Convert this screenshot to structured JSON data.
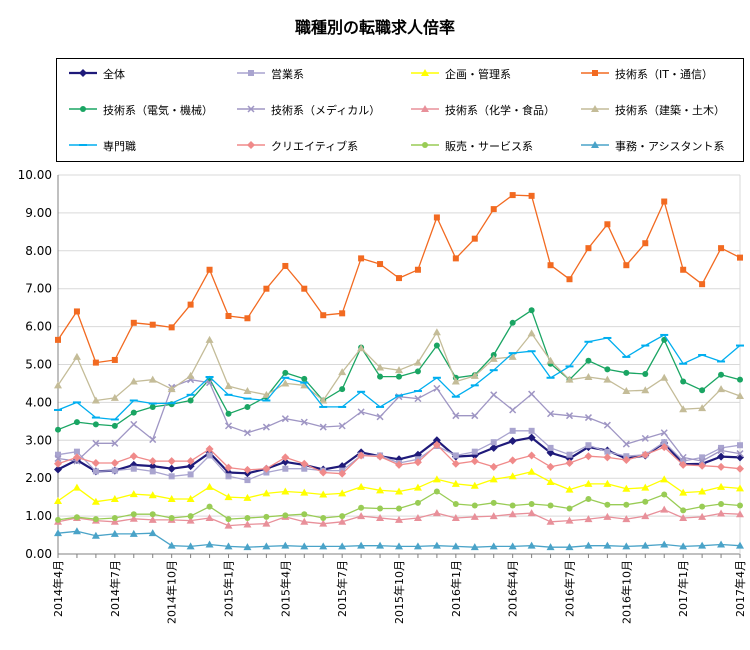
{
  "chart_data": {
    "type": "line",
    "title": "職種別の転職求人倍率",
    "xlabel": "",
    "ylabel": "",
    "ylim": [
      0,
      10
    ],
    "y_ticks": [
      "0.00",
      "1.00",
      "2.00",
      "3.00",
      "4.00",
      "5.00",
      "6.00",
      "7.00",
      "8.00",
      "9.00",
      "10.00"
    ],
    "x_tick_labels": [
      {
        "index": 0,
        "label": "2014年4月"
      },
      {
        "index": 3,
        "label": "2014年7月"
      },
      {
        "index": 6,
        "label": "2014年10月"
      },
      {
        "index": 9,
        "label": "2015年1月"
      },
      {
        "index": 12,
        "label": "2015年4月"
      },
      {
        "index": 15,
        "label": "2015年7月"
      },
      {
        "index": 18,
        "label": "2015年10月"
      },
      {
        "index": 21,
        "label": "2016年1月"
      },
      {
        "index": 24,
        "label": "2016年4月"
      },
      {
        "index": 27,
        "label": "2016年7月"
      },
      {
        "index": 30,
        "label": "2016年10月"
      },
      {
        "index": 33,
        "label": "2017年1月"
      },
      {
        "index": 36,
        "label": "2017年4月"
      }
    ],
    "series": [
      {
        "name": "全体",
        "color": "#1f1a7a",
        "marker": "diamond",
        "values": [
          2.23,
          2.48,
          2.18,
          2.2,
          2.35,
          2.32,
          2.25,
          2.32,
          2.67,
          2.15,
          2.13,
          2.25,
          2.43,
          2.35,
          2.23,
          2.32,
          2.68,
          2.58,
          2.5,
          2.62,
          3.0,
          2.57,
          2.6,
          2.8,
          2.98,
          3.07,
          2.67,
          2.52,
          2.82,
          2.73,
          2.52,
          2.6,
          2.93,
          2.37,
          2.38,
          2.57,
          2.55
        ]
      },
      {
        "name": "営業系",
        "color": "#a9a4cf",
        "marker": "square",
        "values": [
          2.62,
          2.7,
          2.18,
          2.2,
          2.25,
          2.18,
          2.05,
          2.1,
          2.6,
          2.05,
          1.95,
          2.15,
          2.25,
          2.25,
          2.2,
          2.2,
          2.6,
          2.6,
          2.4,
          2.5,
          2.85,
          2.6,
          2.7,
          2.95,
          3.25,
          3.25,
          2.8,
          2.62,
          2.87,
          2.7,
          2.58,
          2.62,
          2.95,
          2.45,
          2.55,
          2.8,
          2.87
        ]
      },
      {
        "name": "企画・管理系",
        "color": "#ffff00",
        "marker": "triangle",
        "values": [
          1.4,
          1.75,
          1.38,
          1.45,
          1.58,
          1.55,
          1.45,
          1.45,
          1.77,
          1.5,
          1.48,
          1.6,
          1.65,
          1.62,
          1.57,
          1.6,
          1.77,
          1.68,
          1.65,
          1.75,
          1.97,
          1.85,
          1.8,
          1.97,
          2.05,
          2.17,
          1.9,
          1.7,
          1.85,
          1.85,
          1.72,
          1.75,
          1.97,
          1.62,
          1.65,
          1.77,
          1.73
        ]
      },
      {
        "name": "技術系（IT・通信）",
        "color": "#f26a21",
        "marker": "square",
        "values": [
          5.65,
          6.4,
          5.05,
          5.12,
          6.1,
          6.05,
          5.98,
          6.58,
          7.5,
          6.28,
          6.22,
          7.0,
          7.6,
          7.0,
          6.3,
          6.35,
          7.8,
          7.65,
          7.28,
          7.5,
          8.88,
          7.8,
          8.32,
          9.1,
          9.47,
          9.45,
          7.62,
          7.25,
          8.07,
          8.7,
          7.62,
          8.2,
          9.3,
          7.5,
          7.12,
          8.07,
          7.82
        ]
      },
      {
        "name": "技術系（電気・機械）",
        "color": "#1aa563",
        "marker": "circle",
        "values": [
          3.28,
          3.48,
          3.42,
          3.38,
          3.73,
          3.88,
          3.95,
          4.05,
          4.62,
          3.7,
          3.88,
          4.15,
          4.78,
          4.62,
          4.05,
          4.35,
          5.45,
          4.68,
          4.68,
          4.82,
          5.5,
          4.65,
          4.72,
          5.25,
          6.1,
          6.43,
          5.02,
          4.6,
          5.1,
          4.87,
          4.78,
          4.75,
          5.65,
          4.55,
          4.32,
          4.73,
          4.6
        ]
      },
      {
        "name": "技術系（メディカル）",
        "color": "#9f96c4",
        "marker": "x",
        "values": [
          2.52,
          2.45,
          2.92,
          2.92,
          3.42,
          3.02,
          4.4,
          4.6,
          4.52,
          3.38,
          3.2,
          3.35,
          3.57,
          3.48,
          3.35,
          3.38,
          3.75,
          3.62,
          4.15,
          4.1,
          4.37,
          3.65,
          3.65,
          4.2,
          3.8,
          4.22,
          3.7,
          3.65,
          3.6,
          3.4,
          2.9,
          3.05,
          3.2,
          2.55,
          2.45,
          2.73,
          2.65
        ]
      },
      {
        "name": "技術系（化学・食品）",
        "color": "#e8909a",
        "marker": "triangle",
        "values": [
          0.85,
          0.95,
          0.88,
          0.85,
          0.93,
          0.9,
          0.9,
          0.88,
          0.95,
          0.75,
          0.78,
          0.8,
          0.98,
          0.85,
          0.8,
          0.85,
          1.0,
          0.95,
          0.9,
          0.95,
          1.08,
          0.95,
          0.98,
          1.0,
          1.05,
          1.08,
          0.85,
          0.88,
          0.92,
          0.98,
          0.92,
          1.0,
          1.17,
          0.95,
          0.98,
          1.07,
          1.05
        ]
      },
      {
        "name": "技術系（建築・土木）",
        "color": "#c4bc98",
        "marker": "triangle",
        "values": [
          4.45,
          5.2,
          4.05,
          4.12,
          4.55,
          4.6,
          4.35,
          4.7,
          5.65,
          4.43,
          4.3,
          4.2,
          4.5,
          4.45,
          4.05,
          4.8,
          5.43,
          4.92,
          4.85,
          5.05,
          5.85,
          4.55,
          4.7,
          5.15,
          5.2,
          5.82,
          5.1,
          4.6,
          4.67,
          4.6,
          4.3,
          4.32,
          4.65,
          3.82,
          3.85,
          4.35,
          4.17
        ]
      },
      {
        "name": "専門職",
        "color": "#00aeef",
        "marker": "dash",
        "values": [
          3.8,
          4.0,
          3.6,
          3.55,
          4.05,
          3.97,
          3.98,
          4.2,
          4.67,
          4.2,
          4.1,
          4.05,
          4.65,
          4.52,
          3.88,
          3.88,
          4.28,
          3.88,
          4.18,
          4.3,
          4.65,
          4.15,
          4.45,
          4.85,
          5.3,
          5.35,
          4.65,
          4.95,
          5.6,
          5.7,
          5.2,
          5.5,
          5.78,
          5.02,
          5.25,
          5.08,
          5.5
        ]
      },
      {
        "name": "クリエイティブ系",
        "color": "#f08a8a",
        "marker": "diamond",
        "values": [
          2.38,
          2.55,
          2.4,
          2.4,
          2.58,
          2.45,
          2.45,
          2.45,
          2.77,
          2.28,
          2.22,
          2.25,
          2.55,
          2.38,
          2.15,
          2.12,
          2.6,
          2.57,
          2.35,
          2.42,
          2.88,
          2.38,
          2.45,
          2.3,
          2.47,
          2.6,
          2.3,
          2.4,
          2.58,
          2.55,
          2.48,
          2.62,
          2.82,
          2.35,
          2.33,
          2.3,
          2.25
        ]
      },
      {
        "name": "販売・サービス系",
        "color": "#99cc55",
        "marker": "circle",
        "values": [
          0.9,
          0.97,
          0.92,
          0.95,
          1.05,
          1.05,
          0.95,
          1.0,
          1.25,
          0.92,
          0.95,
          0.98,
          1.02,
          1.05,
          0.95,
          1.0,
          1.22,
          1.2,
          1.2,
          1.35,
          1.65,
          1.32,
          1.28,
          1.35,
          1.28,
          1.32,
          1.28,
          1.2,
          1.45,
          1.3,
          1.3,
          1.38,
          1.57,
          1.15,
          1.25,
          1.32,
          1.28
        ]
      },
      {
        "name": "事務・アシスタント系",
        "color": "#4aa3c8",
        "marker": "triangle",
        "values": [
          0.55,
          0.6,
          0.48,
          0.53,
          0.53,
          0.55,
          0.22,
          0.2,
          0.25,
          0.2,
          0.18,
          0.2,
          0.22,
          0.2,
          0.2,
          0.2,
          0.22,
          0.22,
          0.2,
          0.2,
          0.22,
          0.2,
          0.18,
          0.2,
          0.2,
          0.22,
          0.18,
          0.18,
          0.22,
          0.22,
          0.2,
          0.22,
          0.25,
          0.2,
          0.22,
          0.25,
          0.22
        ]
      }
    ]
  }
}
